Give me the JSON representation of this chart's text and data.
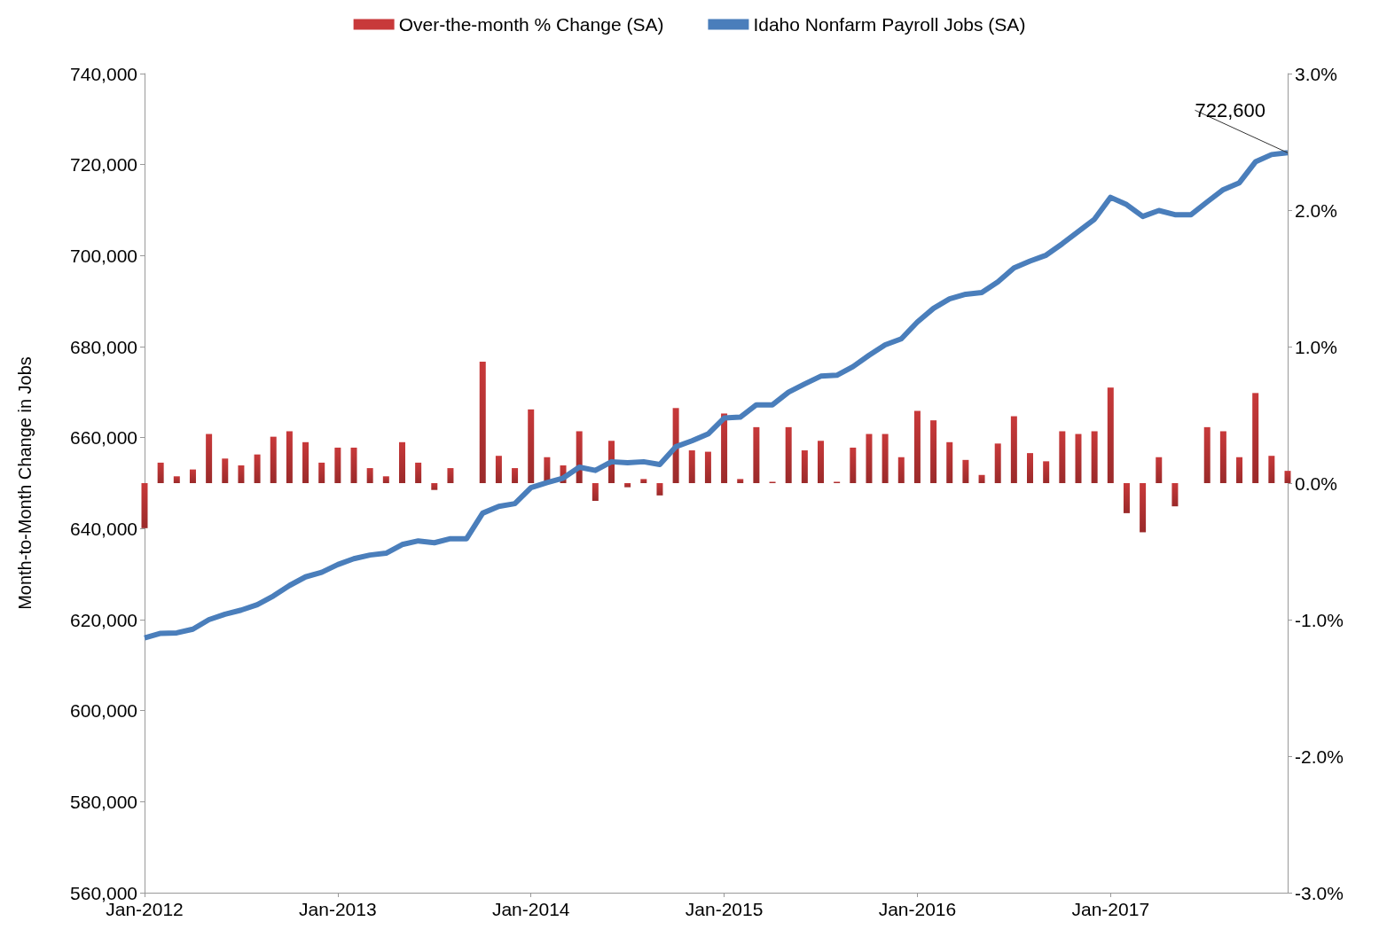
{
  "chart_data": {
    "type": "bar",
    "ylabel": "Month-to-Month Change in Jobs",
    "categories": [
      "Jan-2012",
      null,
      null,
      null,
      null,
      null,
      null,
      null,
      null,
      null,
      null,
      null,
      "Jan-2013",
      null,
      null,
      null,
      null,
      null,
      null,
      null,
      null,
      null,
      null,
      null,
      "Jan-2014",
      null,
      null,
      null,
      null,
      null,
      null,
      null,
      null,
      null,
      null,
      null,
      "Jan-2015",
      null,
      null,
      null,
      null,
      null,
      null,
      null,
      null,
      null,
      null,
      null,
      "Jan-2016",
      null,
      null,
      null,
      null,
      null,
      null,
      null,
      null,
      null,
      null,
      null,
      "Jan-2017",
      null,
      null,
      null,
      null,
      null,
      null,
      null,
      null,
      null,
      null,
      null
    ],
    "series": [
      {
        "name": "Over-the-month % Change (SA)",
        "axis": "y2",
        "color": "#c8393a",
        "values": [
          -0.33,
          0.15,
          0.05,
          0.1,
          0.36,
          0.18,
          0.13,
          0.21,
          0.34,
          0.38,
          0.3,
          0.15,
          0.26,
          0.26,
          0.11,
          0.05,
          0.3,
          0.15,
          -0.05,
          0.11,
          0.0,
          0.89,
          0.2,
          0.11,
          0.54,
          0.19,
          0.13,
          0.38,
          -0.13,
          0.31,
          -0.03,
          0.03,
          -0.09,
          0.55,
          0.24,
          0.23,
          0.51,
          0.03,
          0.41,
          0.01,
          0.41,
          0.24,
          0.31,
          0.01,
          0.26,
          0.36,
          0.36,
          0.19,
          0.53,
          0.46,
          0.3,
          0.17,
          0.06,
          0.29,
          0.49,
          0.22,
          0.16,
          0.38,
          0.36,
          0.38,
          0.7,
          -0.22,
          -0.36,
          0.19,
          -0.17,
          0.0,
          0.41,
          0.38,
          0.19,
          0.66,
          0.2,
          0.09
        ]
      },
      {
        "name": "Idaho Nonfarm Payroll Jobs (SA)",
        "type": "line",
        "color": "#4a7ebb",
        "values": [
          616000,
          617000,
          617100,
          617900,
          620000,
          621200,
          622100,
          623300,
          625200,
          627500,
          629400,
          630400,
          632100,
          633400,
          634200,
          634600,
          636500,
          637300,
          636900,
          637800,
          637800,
          643400,
          644900,
          645500,
          649000,
          650100,
          651100,
          653500,
          652800,
          654700,
          654500,
          654700,
          654100,
          658000,
          659300,
          660800,
          664300,
          664500,
          667200,
          667200,
          670000,
          671800,
          673500,
          673700,
          675600,
          678100,
          680400,
          681700,
          685400,
          688400,
          690500,
          691500,
          691900,
          694200,
          697300,
          698800,
          700100,
          702600,
          705300,
          708000,
          712800,
          711200,
          708600,
          709900,
          709000,
          709000,
          711800,
          714500,
          716000,
          720600,
          722200,
          722600
        ],
        "value_labels": [
          null,
          null,
          null,
          null,
          null,
          null,
          null,
          null,
          null,
          null,
          null,
          null,
          null,
          null,
          null,
          null,
          null,
          null,
          null,
          null,
          null,
          null,
          null,
          null,
          null,
          null,
          null,
          null,
          null,
          null,
          null,
          null,
          null,
          null,
          null,
          null,
          null,
          null,
          null,
          null,
          null,
          null,
          null,
          null,
          null,
          null,
          null,
          null,
          null,
          null,
          null,
          null,
          null,
          null,
          null,
          null,
          null,
          null,
          null,
          null,
          null,
          null,
          null,
          null,
          null,
          null,
          null,
          null,
          null,
          null,
          null,
          "722,600"
        ]
      }
    ],
    "ylim": [
      560000,
      740000
    ],
    "yticks": [
      {
        "value": 560000,
        "label": "560,000"
      },
      {
        "value": 580000,
        "label": "580,000"
      },
      {
        "value": 600000,
        "label": "600,000"
      },
      {
        "value": 620000,
        "label": "620,000"
      },
      {
        "value": 640000,
        "label": "640,000"
      },
      {
        "value": 660000,
        "label": "660,000"
      },
      {
        "value": 680000,
        "label": "680,000"
      },
      {
        "value": 700000,
        "label": "700,000"
      },
      {
        "value": 720000,
        "label": "720,000"
      },
      {
        "value": 740000,
        "label": "740,000"
      }
    ],
    "y2lim": [
      -3,
      3
    ],
    "y2ticks": [
      {
        "value": -3,
        "label": "-3.0%"
      },
      {
        "value": -2,
        "label": "-2.0%"
      },
      {
        "value": -1,
        "label": "-1.0%"
      },
      {
        "value": 0,
        "label": "0.0%"
      },
      {
        "value": 1,
        "label": "1.0%"
      },
      {
        "value": 2,
        "label": "2.0%"
      },
      {
        "value": 3,
        "label": "3.0%"
      }
    ],
    "legend": "top",
    "grid": false
  }
}
